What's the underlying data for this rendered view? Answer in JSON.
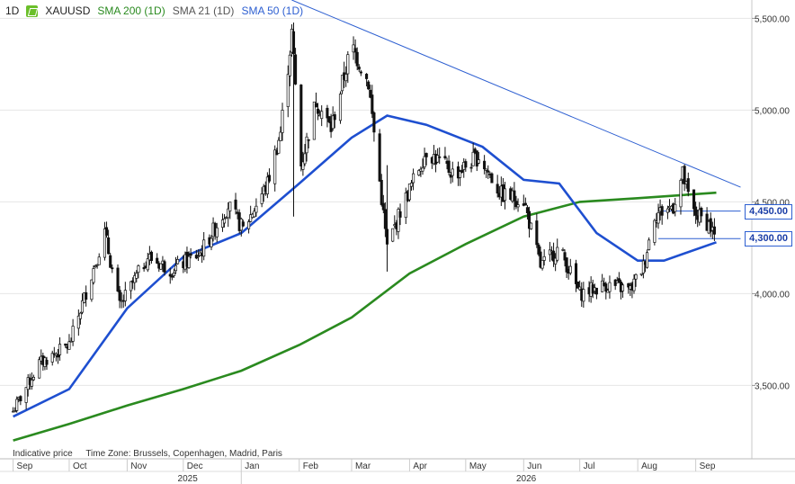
{
  "header": {
    "interval": "1D",
    "symbol": "XAUUSD",
    "sma200_label": "SMA 200 (1D)",
    "sma21_label": "SMA 21 (1D)",
    "sma50_label": "SMA 50 (1D)"
  },
  "footer": {
    "indicative": "Indicative price",
    "timezone": "Time Zone: Brussels, Copenhagen, Madrid, Paris"
  },
  "colors": {
    "sma200": "#2a8a1f",
    "sma50": "#1e4fd0",
    "trendline": "#2d5fd1",
    "level": "#2d5fd1",
    "candle": "#111111"
  },
  "tags": [
    {
      "label": "4,450.00",
      "value": 4450
    },
    {
      "label": "4,300.00",
      "value": 4300
    }
  ],
  "chart_data": {
    "type": "line",
    "y_ticks": [
      {
        "label": "3,500.00",
        "value": 3500
      },
      {
        "label": "4,000.00",
        "value": 4000
      },
      {
        "label": "4,500.00",
        "value": 4500
      },
      {
        "label": "5,000.00",
        "value": 5000
      },
      {
        "label": "5,500.00",
        "value": 5500
      }
    ],
    "ylim": [
      3100,
      5600
    ],
    "x_month_labels": [
      "Sep",
      "Oct",
      "Nov",
      "Dec",
      "Jan",
      "Feb",
      "Mar",
      "Apr",
      "May",
      "Jun",
      "Jul",
      "Aug",
      "Sep"
    ],
    "x_year_labels": [
      "2025",
      "2026"
    ],
    "price_path": [
      [
        "2025-09-01",
        3360
      ],
      [
        "2025-09-15",
        3620
      ],
      [
        "2025-10-01",
        3720
      ],
      [
        "2025-10-20",
        4330
      ],
      [
        "2025-10-28",
        3930
      ],
      [
        "2025-11-12",
        4200
      ],
      [
        "2025-11-25",
        4130
      ],
      [
        "2025-12-10",
        4220
      ],
      [
        "2025-12-25",
        4480
      ],
      [
        "2026-01-02",
        4350
      ],
      [
        "2026-01-15",
        4600
      ],
      [
        "2026-01-22",
        4880
      ],
      [
        "2026-01-28",
        5420
      ],
      [
        "2026-02-02",
        4700
      ],
      [
        "2026-02-10",
        5050
      ],
      [
        "2026-02-18",
        4900
      ],
      [
        "2026-03-01",
        5350
      ],
      [
        "2026-03-10",
        5150
      ],
      [
        "2026-03-20",
        4250
      ],
      [
        "2026-03-27",
        4450
      ],
      [
        "2026-04-10",
        4780
      ],
      [
        "2026-04-25",
        4650
      ],
      [
        "2026-05-08",
        4750
      ],
      [
        "2026-05-20",
        4540
      ],
      [
        "2026-06-01",
        4510
      ],
      [
        "2026-06-10",
        4150
      ],
      [
        "2026-06-20",
        4250
      ],
      [
        "2026-07-01",
        4000
      ],
      [
        "2026-07-15",
        4050
      ],
      [
        "2026-07-28",
        4020
      ],
      [
        "2026-08-04",
        4150
      ],
      [
        "2026-08-10",
        4430
      ],
      [
        "2026-08-20",
        4480
      ],
      [
        "2026-08-25",
        4650
      ],
      [
        "2026-08-30",
        4450
      ],
      [
        "2026-09-08",
        4380
      ],
      [
        "2026-09-12",
        4300
      ]
    ],
    "sma200_path": [
      [
        "2025-09-01",
        3200
      ],
      [
        "2025-10-01",
        3290
      ],
      [
        "2025-11-01",
        3390
      ],
      [
        "2025-12-01",
        3480
      ],
      [
        "2026-01-01",
        3580
      ],
      [
        "2026-02-01",
        3720
      ],
      [
        "2026-03-01",
        3870
      ],
      [
        "2026-04-01",
        4110
      ],
      [
        "2026-05-01",
        4270
      ],
      [
        "2026-06-01",
        4420
      ],
      [
        "2026-07-01",
        4500
      ],
      [
        "2026-08-01",
        4520
      ],
      [
        "2026-09-12",
        4550
      ]
    ],
    "sma50_path": [
      [
        "2025-09-01",
        3330
      ],
      [
        "2025-10-01",
        3480
      ],
      [
        "2025-11-01",
        3920
      ],
      [
        "2025-12-01",
        4200
      ],
      [
        "2026-01-01",
        4330
      ],
      [
        "2026-02-01",
        4600
      ],
      [
        "2026-03-01",
        4850
      ],
      [
        "2026-03-20",
        4970
      ],
      [
        "2026-04-10",
        4920
      ],
      [
        "2026-05-10",
        4800
      ],
      [
        "2026-06-01",
        4620
      ],
      [
        "2026-06-20",
        4600
      ],
      [
        "2026-07-10",
        4330
      ],
      [
        "2026-08-01",
        4180
      ],
      [
        "2026-08-15",
        4180
      ],
      [
        "2026-09-12",
        4280
      ]
    ],
    "trendline": [
      [
        "2026-01-28",
        5600
      ],
      [
        "2026-09-25",
        4580
      ]
    ],
    "levels": [
      {
        "value": 4450,
        "from": "2026-08-12",
        "to": "2026-09-25"
      },
      {
        "value": 4300,
        "from": "2026-08-12",
        "to": "2026-09-25"
      }
    ]
  }
}
